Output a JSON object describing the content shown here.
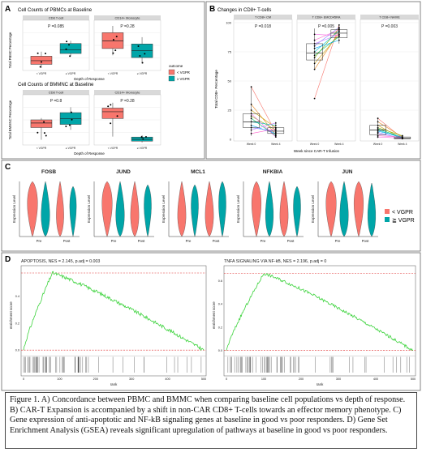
{
  "colors": {
    "red": "#f8766d",
    "teal": "#00a5a8",
    "green": "#3cd33c",
    "dashed": "#e03030",
    "strip": "#d9d9d9",
    "gridline": "#ebebeb"
  },
  "legend_outcome": {
    "title": "outcome",
    "items": [
      "< VGPR",
      "≥ VGPR"
    ]
  },
  "legend_violin": {
    "items": [
      "< VGPR",
      "≧ VGPR"
    ]
  },
  "panelA": {
    "label": "A",
    "top": {
      "title": "Cell Counts of PBMCs at Baseline",
      "ylabel": "Total PBMC Percentage",
      "xlabel": "Depth of Response",
      "facets": [
        {
          "strip": "CD8 T-cell",
          "pval": "P =0.085"
        },
        {
          "strip": "CD14+ Monocyte",
          "pval": "P =0.28"
        }
      ],
      "xticks": [
        "< VGPR",
        "≥ VGPR"
      ]
    },
    "bottom": {
      "title": "Cell Counts of BMMNC at Baseline",
      "ylabel": "Total BMMNC Percentage",
      "xlabel": "Depth of Response",
      "facets": [
        {
          "strip": "CD8 T-cell",
          "pval": "P =0.8"
        },
        {
          "strip": "CD14+ Monocyte",
          "pval": "P =0.28"
        }
      ],
      "xticks": [
        "< VGPR",
        "≥ VGPR"
      ]
    }
  },
  "panelB": {
    "label": "B",
    "title": "Changes in CD8+ T-cells",
    "ylabel": "Total CD8+ Percentage",
    "xlabel": "Week since CAR-T Infusion",
    "yticks": [
      "0",
      "25",
      "50",
      "75",
      "100"
    ],
    "facets": [
      {
        "strip": "T CD8+ CM",
        "pval": "P =0.018"
      },
      {
        "strip": "T CD8+ EMCD45RA",
        "pval": "P =0.005"
      },
      {
        "strip": "T CD8+ NAIVE",
        "pval": "P =0.003"
      }
    ],
    "xticks": [
      "Week 0",
      "Week 4"
    ]
  },
  "panelC": {
    "label": "C",
    "ylabel": "Expression Level",
    "genes": [
      "FOSB",
      "JUND",
      "MCL1",
      "NFKBIA",
      "JUN"
    ],
    "xticks": [
      "Pre",
      "Post"
    ]
  },
  "panelD": {
    "label": "D",
    "plots": [
      {
        "title": "APOPTOSIS, NES = 2.145, p.adj = 0.003",
        "ylabel": "enrichment score",
        "xlabel": "rank",
        "yticks": [
          "0.0",
          "0.2",
          "0.4"
        ],
        "xticks": [
          "0",
          "100",
          "200",
          "300",
          "400",
          "500"
        ]
      },
      {
        "title": "TNFA SIGNALING VIA NF-kB, NES = 2.196, p.adj = 0",
        "ylabel": "enrichment score",
        "xlabel": "rank",
        "yticks": [
          "0.0",
          "0.2",
          "0.4",
          "0.6"
        ],
        "xticks": [
          "0",
          "100",
          "200",
          "300",
          "400",
          "500"
        ]
      }
    ]
  },
  "caption": "Figure 1. A) Concordance between PBMC and BMMC when comparing baseline cell populations vs depth of response. B) CAR-T Expansion is accompanied by a shift in non-CAR CD8+ T-cells towards an effector memory phenotype. C) Gene expression of anti-apoptotic and NF-kB signaling genes at baseline in good vs poor responders. D) Gene Set Enrichment Analysis (GSEA) reveals significant upregulation of pathways at baseline in good vs poor responders.",
  "chart_data": [
    {
      "type": "box",
      "panel": "A-top",
      "title": "Cell Counts of PBMCs at Baseline",
      "xlabel": "Depth of Response",
      "ylabel": "Total PBMC Percentage",
      "facets": [
        "CD8 T-cell",
        "CD14+ Monocyte"
      ],
      "categories": [
        "< VGPR",
        "≥ VGPR"
      ],
      "boxes": [
        [
          {
            "q1": 0.1,
            "med": 0.18,
            "q3": 0.28,
            "lo": 0.02,
            "hi": 0.38
          },
          {
            "q1": 0.34,
            "med": 0.42,
            "q3": 0.56,
            "lo": 0.28,
            "hi": 0.62
          }
        ],
        [
          {
            "q1": 0.45,
            "med": 0.62,
            "q3": 0.8,
            "lo": 0.3,
            "hi": 0.95
          },
          {
            "q1": 0.25,
            "med": 0.4,
            "q3": 0.55,
            "lo": 0.12,
            "hi": 0.7
          }
        ]
      ]
    },
    {
      "type": "box",
      "panel": "A-bottom",
      "title": "Cell Counts of BMMNC at Baseline",
      "xlabel": "Depth of Response",
      "ylabel": "Total BMMNC Percentage",
      "facets": [
        "CD8 T-cell",
        "CD14+ Monocyte"
      ],
      "categories": [
        "< VGPR",
        "≥ VGPR"
      ],
      "boxes": [
        [
          {
            "q1": 0.35,
            "med": 0.45,
            "q3": 0.52,
            "lo": 0.08,
            "hi": 0.56
          },
          {
            "q1": 0.42,
            "med": 0.55,
            "q3": 0.68,
            "lo": 0.3,
            "hi": 0.8
          }
        ],
        [
          {
            "q1": 0.55,
            "med": 0.7,
            "q3": 0.78,
            "lo": 0.15,
            "hi": 0.9
          },
          {
            "q1": 0.05,
            "med": 0.09,
            "q3": 0.14,
            "lo": 0.02,
            "hi": 0.18
          }
        ]
      ]
    },
    {
      "type": "line",
      "panel": "B",
      "title": "Changes in CD8+ T-cells",
      "ylim": [
        0,
        100
      ],
      "categories": [
        "Week 0",
        "Week 4"
      ],
      "facets": [
        "T CD8+ CM",
        "T CD8+ EMCD45RA",
        "T CD8+ NAIVE"
      ],
      "boxes": [
        [
          {
            "q1": 10,
            "med": 15,
            "q3": 22,
            "lo": 3,
            "hi": 45
          },
          {
            "q1": 5,
            "med": 7,
            "q3": 10,
            "lo": 2,
            "hi": 15
          }
        ],
        [
          {
            "q1": 68,
            "med": 74,
            "q3": 82,
            "lo": 60,
            "hi": 95
          },
          {
            "q1": 87,
            "med": 91,
            "q3": 94,
            "lo": 82,
            "hi": 98
          }
        ],
        [
          {
            "q1": 4,
            "med": 8,
            "q3": 12,
            "lo": 1,
            "hi": 18
          },
          {
            "q1": 0.5,
            "med": 1,
            "q3": 2,
            "lo": 0,
            "hi": 4
          }
        ]
      ],
      "pairs": [
        [
          [
            45,
            6
          ],
          [
            30,
            4
          ],
          [
            25,
            10
          ],
          [
            20,
            8
          ],
          [
            18,
            3
          ],
          [
            15,
            12
          ],
          [
            12,
            5
          ],
          [
            10,
            7
          ],
          [
            8,
            14
          ],
          [
            5,
            9
          ],
          [
            22,
            2
          ]
        ],
        [
          [
            35,
            98
          ],
          [
            60,
            92
          ],
          [
            65,
            90
          ],
          [
            70,
            95
          ],
          [
            72,
            88
          ],
          [
            75,
            93
          ],
          [
            78,
            85
          ],
          [
            80,
            96
          ],
          [
            82,
            90
          ],
          [
            85,
            94
          ],
          [
            90,
            89
          ]
        ],
        [
          [
            18,
            1
          ],
          [
            15,
            2
          ],
          [
            12,
            0.5
          ],
          [
            10,
            3
          ],
          [
            9,
            1.5
          ],
          [
            8,
            1
          ],
          [
            7,
            2
          ],
          [
            6,
            0.5
          ],
          [
            5,
            1
          ],
          [
            3,
            2
          ],
          [
            2,
            1
          ]
        ]
      ]
    },
    {
      "type": "violin",
      "panel": "C",
      "genes": [
        "FOSB",
        "JUND",
        "MCL1",
        "NFKBIA",
        "JUN"
      ],
      "groups": [
        "Pre",
        "Post"
      ],
      "series": [
        "< VGPR",
        "≧ VGPR"
      ]
    },
    {
      "type": "line",
      "panel": "D",
      "plots": [
        {
          "title": "APOPTOSIS, NES = 2.145, p.adj = 0.003",
          "xlim": [
            0,
            500
          ],
          "ylim": [
            -0.02,
            0.6
          ],
          "peak_rank": 80,
          "peak_es": 0.57,
          "nes": 2.145,
          "p_adj": 0.003
        },
        {
          "title": "TNFA SIGNALING VIA NF-kB, NES = 2.196, p.adj = 0",
          "xlim": [
            0,
            500
          ],
          "ylim": [
            -0.02,
            0.7
          ],
          "peak_rank": 100,
          "peak_es": 0.66,
          "nes": 2.196,
          "p_adj": 0
        }
      ]
    }
  ]
}
